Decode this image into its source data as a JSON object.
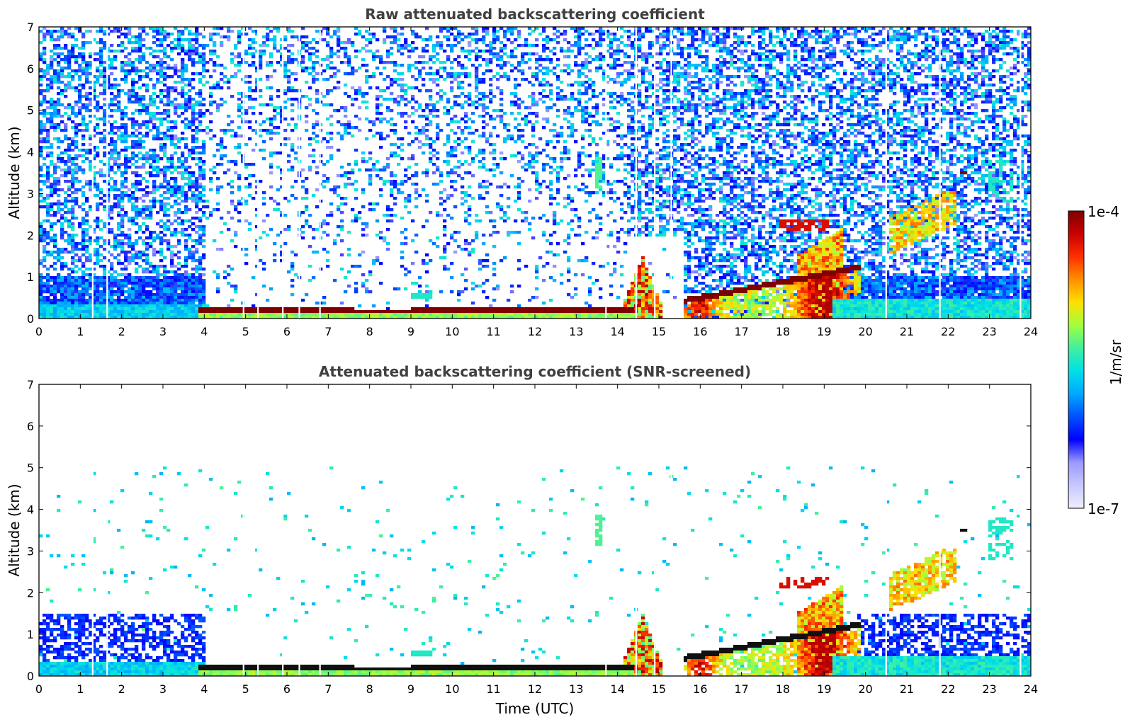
{
  "chart_data": [
    {
      "type": "heatmap",
      "title": "Raw attenuated backscattering coefficient",
      "xlabel": "",
      "ylabel": "Altitude (km)",
      "xlim": [
        0,
        24
      ],
      "ylim": [
        0,
        7
      ],
      "xticks": [
        "0",
        "1",
        "2",
        "3",
        "4",
        "5",
        "6",
        "7",
        "8",
        "9",
        "10",
        "11",
        "12",
        "13",
        "14",
        "15",
        "16",
        "17",
        "18",
        "19",
        "20",
        "21",
        "22",
        "23",
        "24"
      ],
      "yticks": [
        "0",
        "1",
        "2",
        "3",
        "4",
        "5",
        "6",
        "7"
      ],
      "dropout_times": [
        1.3,
        1.65,
        4.95,
        5.3,
        5.9,
        6.3,
        6.8,
        13.72,
        14.45,
        14.9,
        15.3,
        20.5,
        21.8,
        23.75
      ],
      "features": [
        {
          "name": "cloud layer",
          "start": 3.9,
          "end": 14.4,
          "altitude_km": 0.2,
          "level": 1.0
        },
        {
          "name": "boundary layer",
          "start": 0,
          "end": 4.0,
          "altitude_km": 0.3,
          "level": 0.4
        },
        {
          "name": "rising layer",
          "start": 15.6,
          "end": 19.9,
          "altitude_km": 0.4,
          "altitude_end_km": 1.2,
          "level": 1.0
        },
        {
          "name": "aerosol plume",
          "start": 20.6,
          "end": 22.0,
          "altitude_km": 2.5,
          "level": 0.75
        }
      ]
    },
    {
      "type": "heatmap",
      "title": "Attenuated backscattering coefficient (SNR-screened)",
      "xlabel": "Time (UTC)",
      "ylabel": "Altitude (km)",
      "xlim": [
        0,
        24
      ],
      "ylim": [
        0,
        7
      ],
      "xticks": [
        "0",
        "1",
        "2",
        "3",
        "4",
        "5",
        "6",
        "7",
        "8",
        "9",
        "10",
        "11",
        "12",
        "13",
        "14",
        "15",
        "16",
        "17",
        "18",
        "19",
        "20",
        "21",
        "22",
        "23",
        "24"
      ],
      "yticks": [
        "0",
        "1",
        "2",
        "3",
        "4",
        "5",
        "6",
        "7"
      ],
      "screened": true
    }
  ],
  "colorbar": {
    "label": "1/m/sr",
    "max_label": "1e-4",
    "min_label": "1e-7",
    "colors": [
      "#eeeeff",
      "#c8c8ff",
      "#9a9aff",
      "#0000ff",
      "#0050ff",
      "#00a8ff",
      "#00e0e8",
      "#40f0a0",
      "#a0ff40",
      "#ffe000",
      "#ff9000",
      "#ff3000",
      "#c80000",
      "#7f0000"
    ]
  }
}
